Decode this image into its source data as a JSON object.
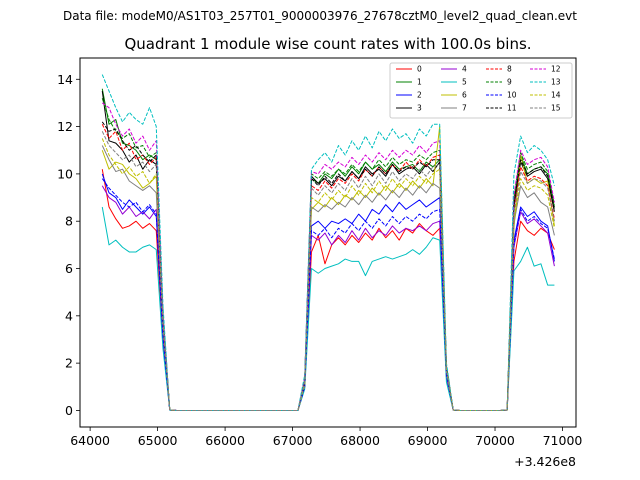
{
  "suptitle": "Data file: modeM0/AS1T03_257T01_9000003976_27678cztM0_level2_quad_clean.evt",
  "chart_data": {
    "type": "line",
    "title": "Quadrant 1 module wise count rates with 100.0s bins.",
    "xlabel": "",
    "ylabel": "",
    "x_offset_label": "+3.426e8",
    "xlim": [
      63850,
      71200
    ],
    "ylim": [
      -0.7,
      14.9
    ],
    "xticks": [
      64000,
      65000,
      66000,
      67000,
      68000,
      69000,
      70000,
      71000
    ],
    "yticks": [
      0,
      2,
      4,
      6,
      8,
      10,
      12,
      14
    ],
    "grid": false,
    "legend": {
      "location": "top-right",
      "columns": 4
    },
    "x": [
      64180,
      64280,
      64380,
      64480,
      64580,
      64680,
      64780,
      64880,
      64980,
      65080,
      65180,
      65280,
      65380,
      65480,
      65580,
      65680,
      65780,
      65880,
      65980,
      66080,
      66180,
      66280,
      66380,
      66480,
      66580,
      66680,
      66780,
      66880,
      66980,
      67080,
      67180,
      67280,
      67380,
      67480,
      67580,
      67680,
      67780,
      67880,
      67980,
      68080,
      68180,
      68280,
      68380,
      68480,
      68580,
      68680,
      68780,
      68880,
      68980,
      69080,
      69180,
      69280,
      69380,
      69480,
      69580,
      69680,
      69780,
      69880,
      69980,
      70080,
      70180,
      70280,
      70380,
      70480,
      70580,
      70680,
      70780,
      70880
    ],
    "series": [
      {
        "name": "0",
        "color": "#ff0000",
        "dash": "solid",
        "values": [
          10.2,
          8.6,
          8.1,
          7.7,
          7.8,
          8.0,
          7.7,
          7.9,
          7.6,
          3.0,
          0.02,
          0,
          0,
          0,
          0,
          0,
          0,
          0,
          0,
          0,
          0,
          0,
          0,
          0,
          0,
          0,
          0,
          0,
          0,
          0,
          1.0,
          6.7,
          7.4,
          6.2,
          7.0,
          7.3,
          7.0,
          7.4,
          7.1,
          7.5,
          7.2,
          7.7,
          7.3,
          7.6,
          7.2,
          7.7,
          7.5,
          7.9,
          7.6,
          7.4,
          7.7,
          1.4,
          0.02,
          0,
          0,
          0,
          0,
          0,
          0,
          0,
          0.02,
          6.3,
          8.0,
          7.6,
          7.4,
          7.7,
          7.5,
          6.8
        ]
      },
      {
        "name": "1",
        "color": "#008000",
        "dash": "solid",
        "values": [
          13.6,
          12.1,
          12.3,
          11.3,
          11.2,
          11.0,
          10.6,
          10.8,
          10.6,
          4.0,
          0.02,
          0,
          0,
          0,
          0,
          0,
          0,
          0,
          0,
          0,
          0,
          0,
          0,
          0,
          0,
          0,
          0,
          0,
          0,
          0,
          1.3,
          9.8,
          9.6,
          10.0,
          9.8,
          10.2,
          9.9,
          10.3,
          10.0,
          10.5,
          10.2,
          10.4,
          10.1,
          10.5,
          10.2,
          10.3,
          10.4,
          10.1,
          10.5,
          10.3,
          10.6,
          1.8,
          0.02,
          0,
          0,
          0,
          0,
          0,
          0,
          0,
          0.02,
          8.8,
          10.8,
          10.0,
          10.2,
          10.3,
          10.0,
          8.6
        ]
      },
      {
        "name": "2",
        "color": "#0000ff",
        "dash": "solid",
        "values": [
          10.0,
          9.2,
          9.0,
          8.5,
          8.9,
          8.6,
          8.3,
          8.6,
          8.2,
          3.2,
          0.02,
          0,
          0,
          0,
          0,
          0,
          0,
          0,
          0,
          0,
          0,
          0,
          0,
          0,
          0,
          0,
          0,
          0,
          0,
          0,
          1.1,
          7.8,
          8.0,
          7.7,
          8.0,
          7.9,
          8.1,
          7.9,
          8.3,
          8.0,
          8.5,
          8.3,
          8.7,
          8.4,
          8.8,
          8.5,
          8.7,
          8.9,
          8.6,
          8.8,
          9.0,
          1.5,
          0.02,
          0,
          0,
          0,
          0,
          0,
          0,
          0,
          0.02,
          7.2,
          8.6,
          8.2,
          8.4,
          8.0,
          7.8,
          6.3
        ]
      },
      {
        "name": "3",
        "color": "#000000",
        "dash": "solid",
        "values": [
          13.5,
          11.4,
          11.3,
          11.0,
          10.5,
          10.8,
          10.2,
          10.6,
          10.4,
          3.9,
          0.02,
          0,
          0,
          0,
          0,
          0,
          0,
          0,
          0,
          0,
          0,
          0,
          0,
          0,
          0,
          0,
          0,
          0,
          0,
          0,
          1.2,
          9.9,
          9.6,
          9.8,
          9.5,
          9.9,
          9.7,
          10.1,
          9.8,
          10.3,
          10.0,
          10.2,
          9.9,
          10.4,
          10.0,
          10.2,
          10.3,
          10.0,
          10.4,
          10.1,
          10.5,
          1.8,
          0.02,
          0,
          0,
          0,
          0,
          0,
          0,
          0,
          0.02,
          8.6,
          10.5,
          9.9,
          10.1,
          10.2,
          9.8,
          8.4
        ]
      },
      {
        "name": "4",
        "color": "#9400d3",
        "dash": "solid",
        "values": [
          9.5,
          9.0,
          8.8,
          8.3,
          8.6,
          8.2,
          8.4,
          8.1,
          8.5,
          3.1,
          0.02,
          0,
          0,
          0,
          0,
          0,
          0,
          0,
          0,
          0,
          0,
          0,
          0,
          0,
          0,
          0,
          0,
          0,
          0,
          0,
          1.0,
          7.4,
          7.2,
          7.5,
          7.0,
          7.4,
          7.1,
          7.6,
          7.2,
          7.7,
          7.3,
          7.6,
          7.4,
          7.8,
          7.5,
          7.7,
          7.6,
          7.8,
          7.6,
          7.9,
          8.0,
          1.4,
          0.02,
          0,
          0,
          0,
          0,
          0,
          0,
          0,
          0.02,
          6.9,
          8.4,
          7.9,
          8.1,
          7.8,
          7.5,
          6.1
        ]
      },
      {
        "name": "5",
        "color": "#00bfbf",
        "dash": "solid",
        "values": [
          8.6,
          7.0,
          7.2,
          6.9,
          6.7,
          6.7,
          6.9,
          7.0,
          6.8,
          2.6,
          0.02,
          0,
          0,
          0,
          0,
          0,
          0,
          0,
          0,
          0,
          0,
          0,
          0,
          0,
          0,
          0,
          0,
          0,
          0,
          0,
          0.9,
          6.0,
          5.8,
          6.0,
          6.1,
          6.2,
          6.4,
          6.3,
          6.3,
          5.7,
          6.3,
          6.4,
          6.5,
          6.4,
          6.5,
          6.6,
          6.8,
          6.6,
          6.9,
          7.3,
          7.2,
          1.2,
          0.02,
          0,
          0,
          0,
          0,
          0,
          0,
          0,
          0.02,
          5.9,
          6.3,
          6.9,
          6.1,
          6.2,
          5.3,
          5.3
        ]
      },
      {
        "name": "6",
        "color": "#bfbf00",
        "dash": "solid",
        "values": [
          11.0,
          10.2,
          10.5,
          10.4,
          10.0,
          9.8,
          9.4,
          9.6,
          9.9,
          3.6,
          0.02,
          0,
          0,
          0,
          0,
          0,
          0,
          0,
          0,
          0,
          0,
          0,
          0,
          0,
          0,
          0,
          0,
          0,
          0,
          0,
          1.1,
          8.5,
          8.8,
          8.6,
          9.0,
          8.7,
          9.1,
          8.9,
          9.3,
          9.0,
          9.4,
          9.1,
          9.5,
          9.2,
          9.6,
          9.3,
          9.7,
          9.4,
          9.8,
          9.5,
          12.0,
          1.7,
          0.02,
          0,
          0,
          0,
          0,
          0,
          0,
          0,
          0.02,
          7.7,
          10.8,
          9.6,
          9.8,
          9.6,
          9.7,
          7.8
        ]
      },
      {
        "name": "7",
        "color": "#808080",
        "dash": "solid",
        "values": [
          11.2,
          10.6,
          10.1,
          10.2,
          9.7,
          9.5,
          9.3,
          9.5,
          9.2,
          3.5,
          0.02,
          0,
          0,
          0,
          0,
          0,
          0,
          0,
          0,
          0,
          0,
          0,
          0,
          0,
          0,
          0,
          0,
          0,
          0,
          0,
          1.1,
          8.6,
          8.4,
          8.7,
          8.5,
          8.8,
          8.6,
          9.0,
          8.7,
          9.1,
          8.8,
          9.2,
          8.9,
          9.3,
          9.0,
          9.4,
          9.1,
          9.5,
          9.2,
          9.6,
          9.4,
          1.6,
          0.02,
          0,
          0,
          0,
          0,
          0,
          0,
          0,
          0.02,
          7.9,
          9.5,
          9.0,
          9.2,
          8.8,
          8.6,
          7.4
        ]
      },
      {
        "name": "8",
        "color": "#ff0000",
        "dash": "dashed",
        "values": [
          12.1,
          11.5,
          11.8,
          11.0,
          11.3,
          10.6,
          10.8,
          10.4,
          10.7,
          3.9,
          0.02,
          0,
          0,
          0,
          0,
          0,
          0,
          0,
          0,
          0,
          0,
          0,
          0,
          0,
          0,
          0,
          0,
          0,
          0,
          0,
          1.3,
          9.5,
          9.3,
          9.7,
          9.4,
          9.8,
          9.6,
          10.0,
          9.7,
          10.2,
          9.9,
          10.3,
          10.0,
          10.4,
          10.1,
          10.5,
          10.2,
          10.6,
          10.3,
          10.7,
          10.8,
          1.8,
          0.02,
          0,
          0,
          0,
          0,
          0,
          0,
          0,
          0.02,
          8.5,
          10.3,
          9.7,
          9.9,
          9.8,
          9.5,
          8.1
        ]
      },
      {
        "name": "9",
        "color": "#008000",
        "dash": "dashed",
        "values": [
          13.2,
          12.3,
          11.8,
          11.5,
          11.7,
          11.1,
          11.2,
          10.7,
          10.9,
          4.0,
          0.02,
          0,
          0,
          0,
          0,
          0,
          0,
          0,
          0,
          0,
          0,
          0,
          0,
          0,
          0,
          0,
          0,
          0,
          0,
          0,
          1.3,
          10.0,
          9.8,
          10.1,
          9.9,
          10.2,
          10.0,
          10.4,
          10.1,
          10.5,
          10.2,
          10.6,
          10.3,
          10.7,
          10.4,
          10.6,
          10.5,
          10.8,
          10.6,
          10.9,
          11.0,
          1.9,
          0.02,
          0,
          0,
          0,
          0,
          0,
          0,
          0,
          0.02,
          9.0,
          10.9,
          10.2,
          10.4,
          10.5,
          10.1,
          8.7
        ]
      },
      {
        "name": "10",
        "color": "#0000ff",
        "dash": "dashed",
        "values": [
          9.8,
          9.4,
          9.1,
          8.8,
          8.6,
          8.8,
          8.4,
          8.7,
          8.3,
          3.1,
          0.02,
          0,
          0,
          0,
          0,
          0,
          0,
          0,
          0,
          0,
          0,
          0,
          0,
          0,
          0,
          0,
          0,
          0,
          0,
          0,
          1.0,
          7.6,
          7.4,
          7.7,
          7.3,
          7.7,
          7.5,
          7.9,
          7.6,
          8.0,
          7.7,
          8.1,
          7.8,
          8.2,
          7.9,
          8.2,
          8.0,
          8.3,
          8.1,
          8.4,
          8.5,
          1.5,
          0.02,
          0,
          0,
          0,
          0,
          0,
          0,
          0,
          0.02,
          7.0,
          8.5,
          8.0,
          8.2,
          7.9,
          7.7,
          6.4
        ]
      },
      {
        "name": "11",
        "color": "#000000",
        "dash": "dashed",
        "values": [
          12.2,
          11.8,
          11.9,
          11.4,
          11.0,
          11.2,
          10.8,
          10.5,
          10.8,
          3.9,
          0.02,
          0,
          0,
          0,
          0,
          0,
          0,
          0,
          0,
          0,
          0,
          0,
          0,
          0,
          0,
          0,
          0,
          0,
          0,
          0,
          1.2,
          9.8,
          9.5,
          9.9,
          9.6,
          10.0,
          9.7,
          10.1,
          9.8,
          10.2,
          9.9,
          10.3,
          10.0,
          10.4,
          10.1,
          10.3,
          10.2,
          10.5,
          10.3,
          10.6,
          10.6,
          1.8,
          0.02,
          0,
          0,
          0,
          0,
          0,
          0,
          0,
          0.02,
          8.7,
          10.6,
          10.0,
          10.2,
          10.3,
          9.9,
          8.5
        ]
      },
      {
        "name": "12",
        "color": "#d400d4",
        "dash": "dashed",
        "values": [
          13.0,
          12.8,
          12.1,
          11.6,
          11.9,
          11.3,
          11.6,
          11.0,
          11.4,
          4.2,
          0.02,
          0,
          0,
          0,
          0,
          0,
          0,
          0,
          0,
          0,
          0,
          0,
          0,
          0,
          0,
          0,
          0,
          0,
          0,
          0,
          1.4,
          10.1,
          10.0,
          10.4,
          10.2,
          10.5,
          10.3,
          10.7,
          10.4,
          10.8,
          10.5,
          10.9,
          10.6,
          11.0,
          10.7,
          11.0,
          10.8,
          11.2,
          10.9,
          11.3,
          11.4,
          1.9,
          0.02,
          0,
          0,
          0,
          0,
          0,
          0,
          0,
          0.02,
          9.1,
          11.0,
          10.4,
          10.6,
          10.7,
          10.3,
          8.8
        ]
      },
      {
        "name": "13",
        "color": "#00bfbf",
        "dash": "dashed",
        "values": [
          14.2,
          13.5,
          12.8,
          12.2,
          12.6,
          12.3,
          12.1,
          12.8,
          12.0,
          4.4,
          0.02,
          0,
          0,
          0,
          0,
          0,
          0,
          0,
          0,
          0,
          0,
          0,
          0,
          0,
          0,
          0,
          0,
          0,
          0,
          0,
          1.5,
          10.2,
          10.6,
          10.9,
          10.5,
          11.2,
          10.8,
          11.4,
          11.0,
          11.6,
          11.1,
          11.8,
          11.4,
          11.9,
          11.5,
          11.7,
          11.3,
          11.9,
          11.6,
          12.1,
          12.1,
          2.0,
          0.02,
          0,
          0,
          0,
          0,
          0,
          0,
          0,
          0.02,
          10.0,
          11.6,
          10.9,
          11.2,
          11.0,
          10.6,
          9.5
        ]
      },
      {
        "name": "14",
        "color": "#bfbf00",
        "dash": "dashed",
        "values": [
          11.5,
          10.8,
          10.4,
          10.0,
          10.3,
          9.9,
          10.1,
          9.6,
          10.0,
          3.7,
          0.02,
          0,
          0,
          0,
          0,
          0,
          0,
          0,
          0,
          0,
          0,
          0,
          0,
          0,
          0,
          0,
          0,
          0,
          0,
          0,
          1.1,
          9.0,
          8.8,
          9.2,
          8.9,
          9.3,
          9.0,
          9.5,
          9.1,
          9.6,
          9.2,
          9.7,
          9.3,
          9.8,
          9.4,
          9.8,
          9.5,
          9.9,
          9.6,
          10.0,
          10.2,
          1.7,
          0.02,
          0,
          0,
          0,
          0,
          0,
          0,
          0,
          0.02,
          8.0,
          9.8,
          9.3,
          9.5,
          9.4,
          9.1,
          7.7
        ]
      },
      {
        "name": "15",
        "color": "#808080",
        "dash": "dashed",
        "values": [
          11.8,
          11.2,
          10.9,
          10.6,
          10.8,
          10.3,
          10.5,
          10.1,
          10.4,
          3.8,
          0.02,
          0,
          0,
          0,
          0,
          0,
          0,
          0,
          0,
          0,
          0,
          0,
          0,
          0,
          0,
          0,
          0,
          0,
          0,
          0,
          1.2,
          9.4,
          9.1,
          9.5,
          9.2,
          9.6,
          9.3,
          9.8,
          9.4,
          9.9,
          9.5,
          10.0,
          9.6,
          10.1,
          9.7,
          10.0,
          9.8,
          10.2,
          9.9,
          10.3,
          10.4,
          1.7,
          0.02,
          0,
          0,
          0,
          0,
          0,
          0,
          0,
          0.02,
          8.3,
          10.1,
          9.6,
          9.8,
          9.7,
          9.4,
          8.0
        ]
      }
    ]
  }
}
